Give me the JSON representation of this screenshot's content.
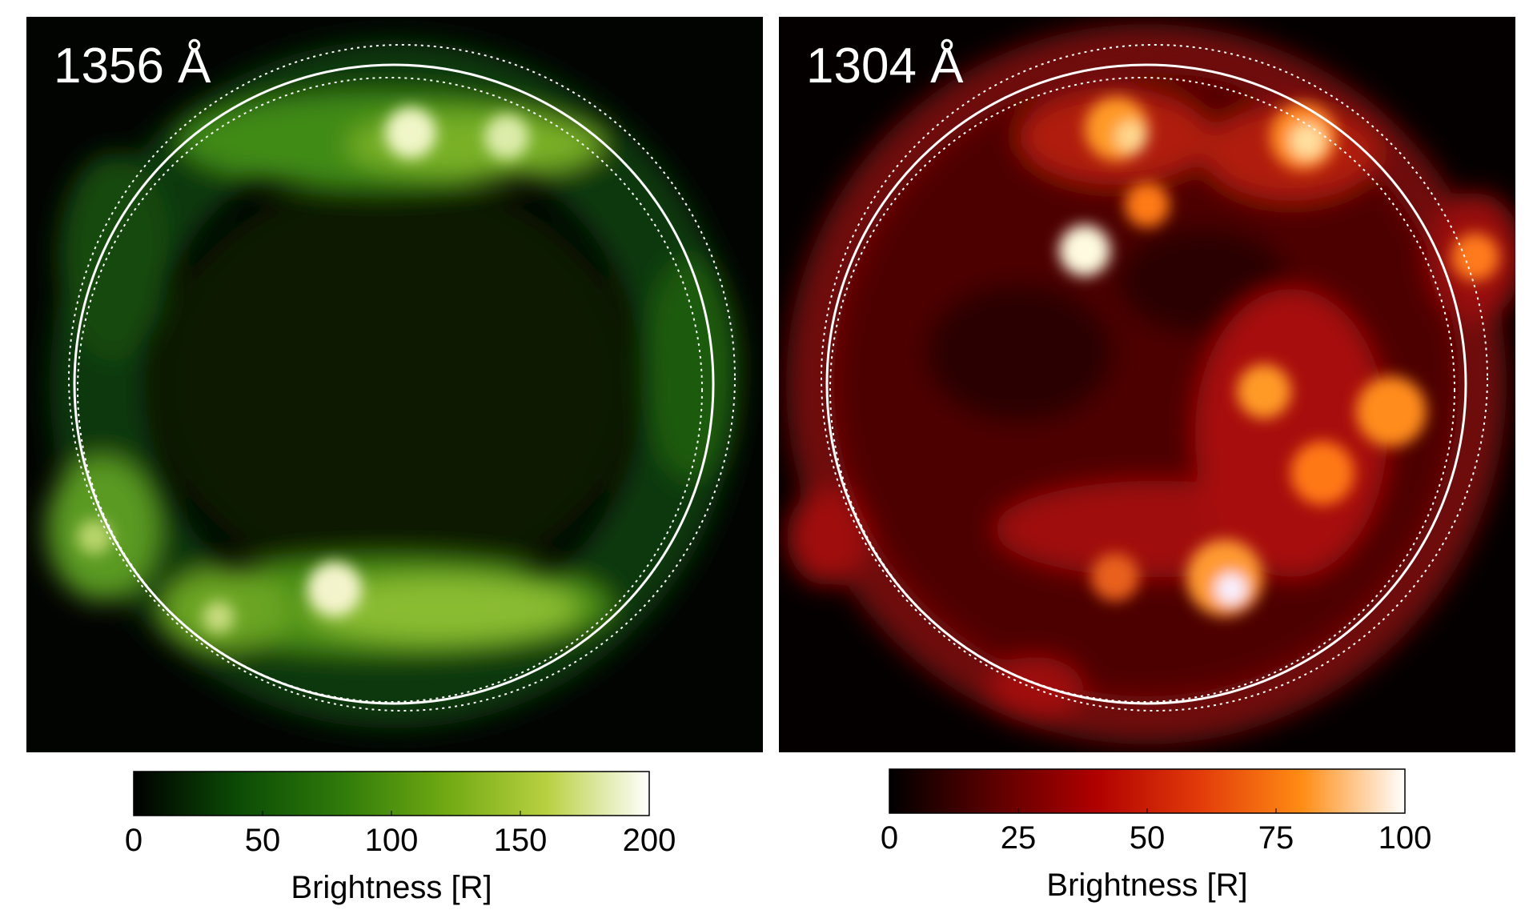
{
  "chart_data": [
    {
      "type": "image",
      "title": "1356 Å",
      "colorbar": {
        "label": "Brightness [R]",
        "lim": [
          0,
          200
        ],
        "ticks": [
          0,
          50,
          100,
          150,
          200
        ],
        "colors": [
          "#000000",
          "#0b4a05",
          "#2e7a0a",
          "#6ea812",
          "#b8d040",
          "#ffffff"
        ]
      }
    },
    {
      "type": "image",
      "title": "1304 Å",
      "colorbar": {
        "label": "Brightness [R]",
        "lim": [
          0,
          100
        ],
        "ticks": [
          0,
          25,
          50,
          75,
          100
        ],
        "colors": [
          "#000000",
          "#5a0000",
          "#b00000",
          "#e23a0a",
          "#ff8c14",
          "#ffffff"
        ]
      }
    }
  ]
}
